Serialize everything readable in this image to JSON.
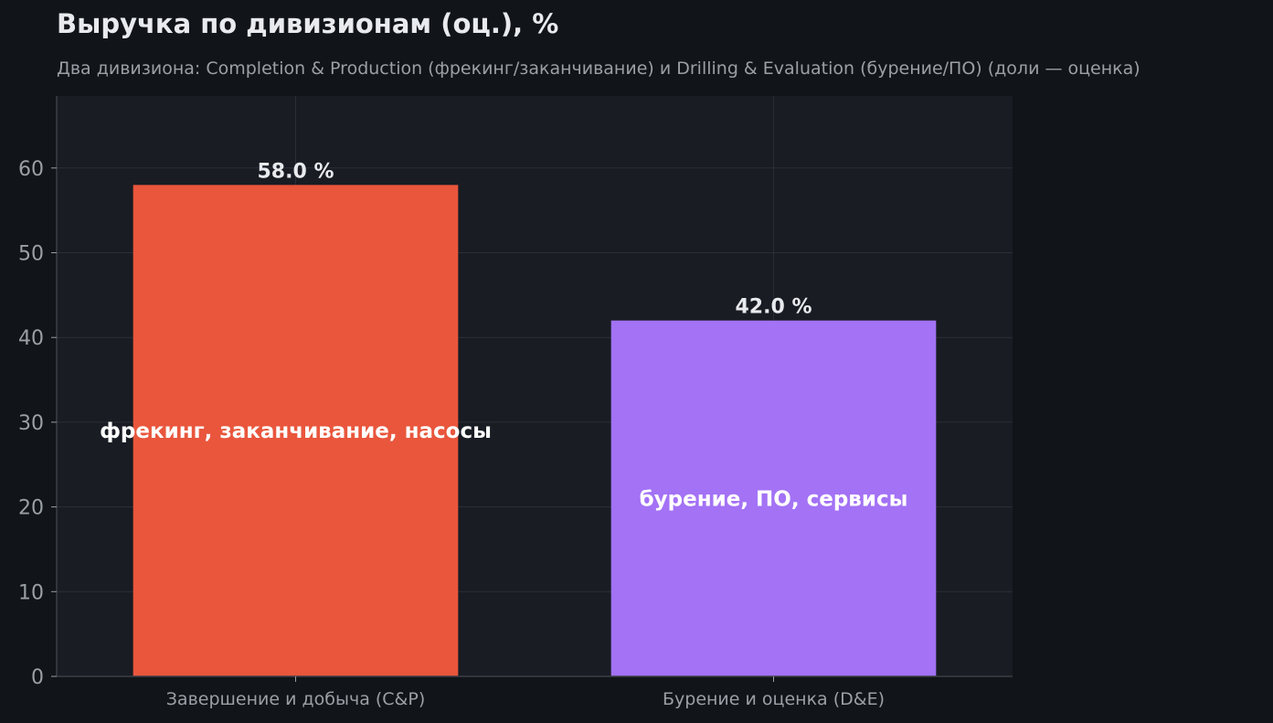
{
  "title": "Выручка по дивизионам (оц.), %",
  "subtitle": "Два дивизиона: Completion & Production (фрекинг/заканчивание) и Drilling & Evaluation (бурение/ПО) (доли — оценка)",
  "colors": {
    "background": "#111418",
    "plot_background": "#191c23",
    "grid": "#2a2e37",
    "axis": "#3a3e46",
    "tick_text": "#9aa0a6",
    "value_label": "#e8eaed",
    "inner_label": "#ffffff"
  },
  "chart_data": {
    "type": "bar",
    "title": "Выручка по дивизионам (оц.), %",
    "xlabel": "",
    "ylabel": "",
    "ylim": [
      0,
      68.5
    ],
    "yticks": [
      0,
      10,
      20,
      30,
      40,
      50,
      60
    ],
    "grid": true,
    "categories": [
      "Завершение и добыча (C&P)",
      "Бурение и оценка (D&E)"
    ],
    "values": [
      58.0,
      42.0
    ],
    "value_labels": [
      "58.0 %",
      "42.0 %"
    ],
    "bar_colors": [
      "#e9563c",
      "#a372f5"
    ],
    "inner_labels": [
      "фрекинг, заканчивание, насосы",
      "бурение, ПО, сервисы"
    ]
  }
}
